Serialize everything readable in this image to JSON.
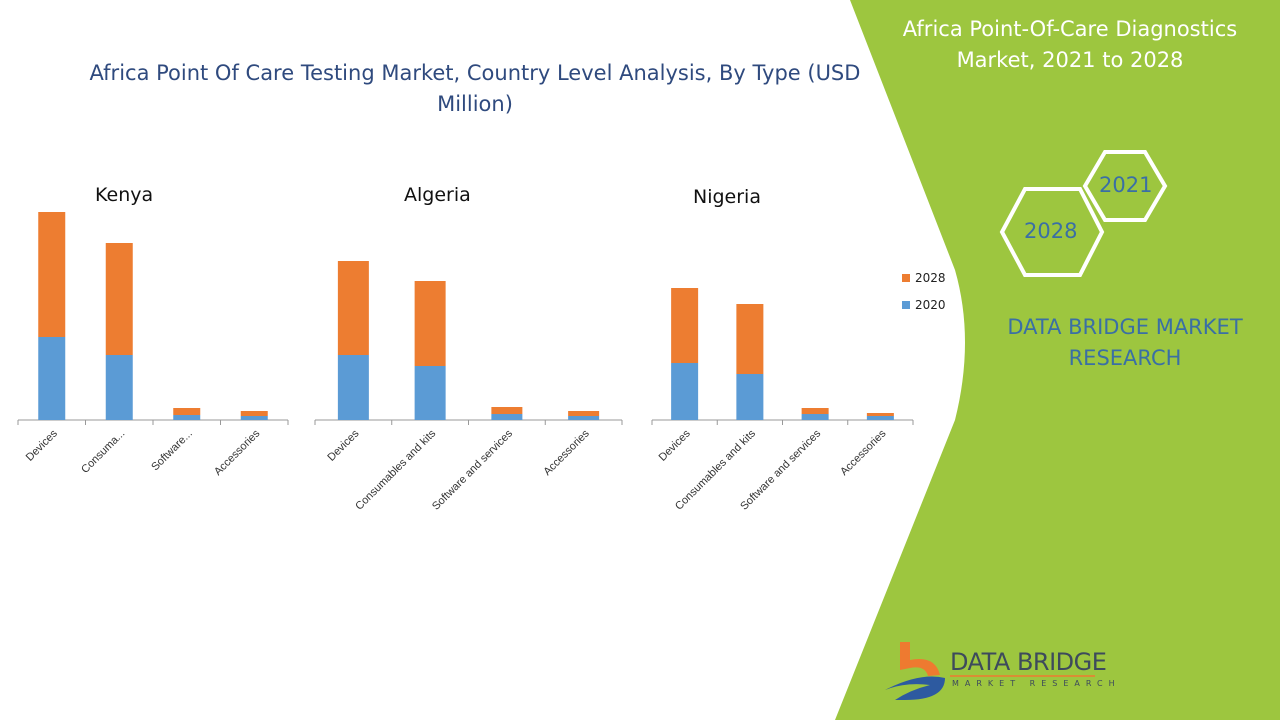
{
  "title": "Africa Point Of Care Testing Market, Country Level Analysis, By Type (USD Million)",
  "side_panel": {
    "title": "Africa Point-Of-Care Diagnostics Market, 2021 to 2028",
    "hex_years": [
      "2021",
      "2028"
    ],
    "brand": "DATA BRIDGE MARKET RESEARCH",
    "logo_text": "DATA BRIDGE",
    "logo_subtext": "MARKET RESEARCH",
    "green": "#9dc63f"
  },
  "legend": [
    "2028",
    "2020"
  ],
  "colors": {
    "2020": "#5b9bd5",
    "2028": "#ed7d31"
  },
  "chart_data": [
    {
      "type": "bar",
      "stacked": true,
      "title": "Kenya",
      "categories": [
        "Devices",
        "Consuma...",
        "Software...",
        "Accessories"
      ],
      "series": [
        {
          "name": "2020",
          "values": [
            83,
            65,
            5,
            4
          ]
        },
        {
          "name": "2028",
          "values": [
            125,
            112,
            7,
            5
          ]
        }
      ],
      "ylim": [
        0,
        210
      ],
      "grid": false,
      "legend": "right"
    },
    {
      "type": "bar",
      "stacked": true,
      "title": "Algeria",
      "categories": [
        "Devices",
        "Consumables and kits",
        "Software and services",
        "Accessories"
      ],
      "series": [
        {
          "name": "2020",
          "values": [
            65,
            54,
            6,
            4
          ]
        },
        {
          "name": "2028",
          "values": [
            94,
            85,
            7,
            5
          ]
        }
      ],
      "ylim": [
        0,
        210
      ],
      "grid": false,
      "legend": "right"
    },
    {
      "type": "bar",
      "stacked": true,
      "title": "Nigeria",
      "categories": [
        "Devices",
        "Consumables and kits",
        "Software and services",
        "Accessories"
      ],
      "series": [
        {
          "name": "2020",
          "values": [
            57,
            46,
            6,
            4
          ]
        },
        {
          "name": "2028",
          "values": [
            75,
            70,
            6,
            3
          ]
        }
      ],
      "ylim": [
        0,
        210
      ],
      "grid": false,
      "legend": "right"
    }
  ]
}
